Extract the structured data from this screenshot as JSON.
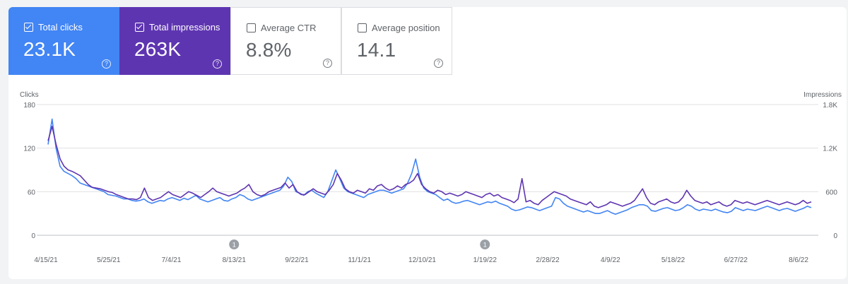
{
  "metrics": [
    {
      "label": "Total clicks",
      "value": "23.1K",
      "checked": true,
      "bg": "#4285f4",
      "fg": "#ffffff"
    },
    {
      "label": "Total impressions",
      "value": "263K",
      "checked": true,
      "bg": "#5e35b1",
      "fg": "#ffffff"
    },
    {
      "label": "Average CTR",
      "value": "8.8%",
      "checked": false,
      "bg": "#ffffff",
      "fg": "#5f6368"
    },
    {
      "label": "Average position",
      "value": "14.1",
      "checked": false,
      "bg": "#ffffff",
      "fg": "#5f6368"
    }
  ],
  "help_glyph": "?",
  "chart_data": {
    "type": "line",
    "ylabel_left": "Clicks",
    "ylabel_right": "Impressions",
    "y_ticks_left": [
      "180",
      "120",
      "60",
      "0"
    ],
    "y_ticks_right": [
      "1.8K",
      "1.2K",
      "600",
      "0"
    ],
    "ylim_left": [
      0,
      180
    ],
    "ylim_right": [
      0,
      1800
    ],
    "x_tick_labels": [
      "4/15/21",
      "5/25/21",
      "7/4/21",
      "8/13/21",
      "9/22/21",
      "11/1/21",
      "12/10/21",
      "1/19/22",
      "2/28/22",
      "4/9/22",
      "5/18/22",
      "6/27/22",
      "8/6/22"
    ],
    "annotations": [
      {
        "date": "8/13/21",
        "label": "1"
      },
      {
        "date": "1/19/22",
        "label": "1"
      }
    ],
    "grid": true,
    "series": [
      {
        "name": "Clicks",
        "axis": "left",
        "color": "#4285f4",
        "values": [
          125,
          160,
          120,
          95,
          88,
          85,
          82,
          78,
          72,
          70,
          68,
          66,
          64,
          62,
          60,
          56,
          55,
          54,
          52,
          50,
          50,
          48,
          47,
          48,
          50,
          46,
          44,
          46,
          48,
          47,
          50,
          52,
          50,
          48,
          51,
          49,
          52,
          55,
          50,
          48,
          46,
          48,
          50,
          52,
          48,
          47,
          50,
          52,
          56,
          54,
          50,
          48,
          50,
          52,
          54,
          56,
          58,
          60,
          62,
          68,
          80,
          74,
          60,
          58,
          55,
          60,
          62,
          58,
          55,
          52,
          60,
          75,
          90,
          78,
          65,
          60,
          58,
          56,
          54,
          52,
          56,
          58,
          60,
          62,
          62,
          60,
          58,
          60,
          62,
          64,
          72,
          85,
          105,
          80,
          65,
          60,
          58,
          56,
          52,
          48,
          50,
          46,
          44,
          45,
          47,
          48,
          46,
          44,
          42,
          44,
          46,
          45,
          47,
          44,
          42,
          40,
          36,
          34,
          35,
          37,
          39,
          38,
          36,
          34,
          36,
          38,
          40,
          52,
          50,
          44,
          40,
          38,
          36,
          34,
          32,
          34,
          32,
          30,
          30,
          32,
          34,
          31,
          29,
          31,
          33,
          35,
          38,
          40,
          42,
          42,
          40,
          34,
          33,
          35,
          37,
          38,
          36,
          34,
          35,
          38,
          42,
          40,
          36,
          34,
          36,
          35,
          34,
          36,
          34,
          32,
          31,
          33,
          38,
          36,
          34,
          36,
          35,
          34,
          36,
          38,
          40,
          38,
          36,
          34,
          36,
          37,
          35,
          33,
          35,
          37,
          40,
          38
        ]
      },
      {
        "name": "Impressions",
        "axis": "right",
        "color": "#5e35b1",
        "values": [
          1300,
          1500,
          1250,
          1050,
          950,
          900,
          880,
          850,
          820,
          760,
          700,
          660,
          650,
          640,
          620,
          600,
          590,
          560,
          540,
          520,
          500,
          500,
          490,
          520,
          650,
          520,
          480,
          500,
          520,
          560,
          600,
          560,
          540,
          520,
          560,
          600,
          580,
          550,
          520,
          560,
          600,
          650,
          600,
          580,
          560,
          540,
          560,
          580,
          620,
          650,
          700,
          600,
          560,
          540,
          560,
          600,
          620,
          640,
          660,
          720,
          650,
          700,
          600,
          560,
          560,
          600,
          640,
          600,
          580,
          560,
          620,
          700,
          850,
          760,
          640,
          600,
          580,
          620,
          600,
          580,
          640,
          620,
          680,
          700,
          650,
          620,
          640,
          680,
          650,
          700,
          720,
          760,
          850,
          700,
          640,
          600,
          580,
          620,
          600,
          560,
          580,
          560,
          540,
          560,
          600,
          580,
          560,
          540,
          520,
          560,
          580,
          540,
          560,
          520,
          500,
          480,
          450,
          500,
          780,
          460,
          480,
          440,
          420,
          480,
          520,
          560,
          600,
          580,
          560,
          540,
          500,
          480,
          460,
          440,
          420,
          460,
          400,
          380,
          400,
          420,
          460,
          440,
          420,
          400,
          420,
          440,
          480,
          560,
          640,
          520,
          440,
          420,
          460,
          480,
          500,
          460,
          440,
          460,
          520,
          620,
          540,
          480,
          460,
          440,
          460,
          420,
          440,
          460,
          420,
          400,
          420,
          480,
          460,
          440,
          460,
          440,
          420,
          440,
          460,
          480,
          460,
          440,
          420,
          440,
          460,
          440,
          420,
          440,
          480,
          440,
          460
        ]
      }
    ]
  }
}
